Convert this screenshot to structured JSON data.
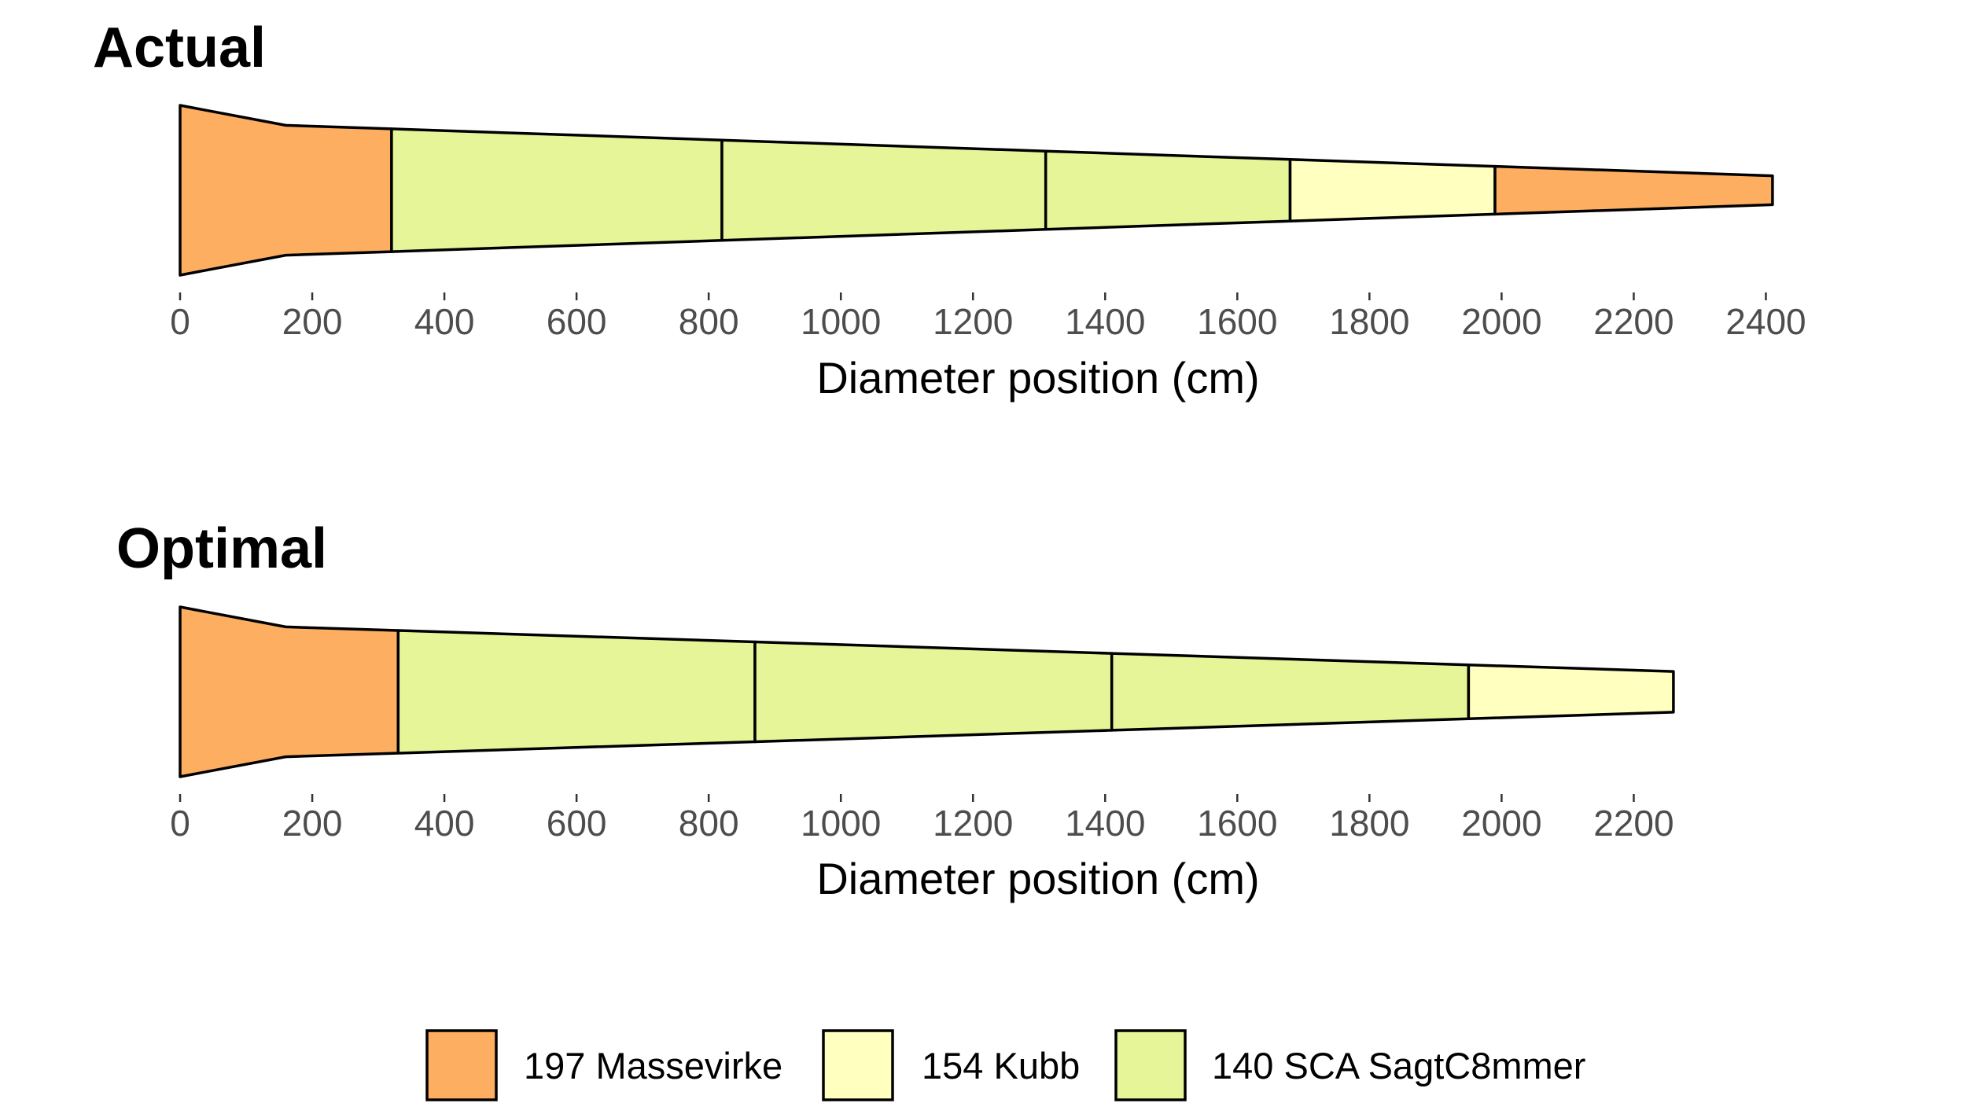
{
  "chart_data": [
    {
      "type": "bar",
      "title": "Actual",
      "xlabel": "Diameter position (cm)",
      "xlim": [
        0,
        2420
      ],
      "xticks": [
        0,
        200,
        400,
        600,
        800,
        1000,
        1200,
        1400,
        1600,
        1800,
        2000,
        2200,
        2400
      ],
      "diameter_profile": [
        {
          "x": 0,
          "d": 1.0
        },
        {
          "x": 160,
          "d": 0.765
        },
        {
          "x": 2410,
          "d": 0.17
        }
      ],
      "segments": [
        {
          "start": 0,
          "end": 320,
          "assortment": "197 Massevirke"
        },
        {
          "start": 320,
          "end": 820,
          "assortment": "140 SCA SagtC8mmer"
        },
        {
          "start": 820,
          "end": 1310,
          "assortment": "140 SCA SagtC8mmer"
        },
        {
          "start": 1310,
          "end": 1680,
          "assortment": "140 SCA SagtC8mmer"
        },
        {
          "start": 1680,
          "end": 1990,
          "assortment": "154 Kubb"
        },
        {
          "start": 1990,
          "end": 2410,
          "assortment": "197 Massevirke"
        }
      ]
    },
    {
      "type": "bar",
      "title": "Optimal",
      "xlabel": "Diameter position (cm)",
      "xlim": [
        0,
        2420
      ],
      "xticks": [
        0,
        200,
        400,
        600,
        800,
        1000,
        1200,
        1400,
        1600,
        1800,
        2000,
        2200
      ],
      "diameter_profile": [
        {
          "x": 0,
          "d": 1.0
        },
        {
          "x": 160,
          "d": 0.765
        },
        {
          "x": 2260,
          "d": 0.24
        }
      ],
      "segments": [
        {
          "start": 0,
          "end": 330,
          "assortment": "197 Massevirke"
        },
        {
          "start": 330,
          "end": 870,
          "assortment": "140 SCA SagtC8mmer"
        },
        {
          "start": 870,
          "end": 1410,
          "assortment": "140 SCA SagtC8mmer"
        },
        {
          "start": 1410,
          "end": 1950,
          "assortment": "140 SCA SagtC8mmer"
        },
        {
          "start": 1950,
          "end": 2260,
          "assortment": "154 Kubb"
        }
      ]
    }
  ],
  "legend": {
    "placement": "bottom",
    "items": [
      {
        "label": "197 Massevirke",
        "color": "#FDAE61"
      },
      {
        "label": "154 Kubb",
        "color": "#FFFFBF"
      },
      {
        "label": "140 SCA SagtC8mmer",
        "color": "#E6F598"
      }
    ]
  }
}
